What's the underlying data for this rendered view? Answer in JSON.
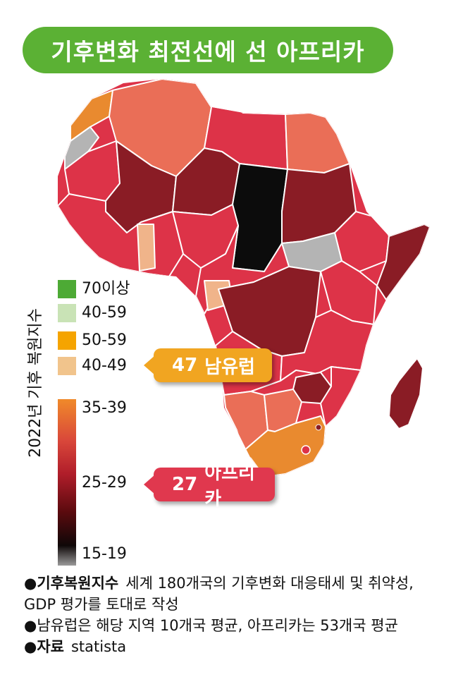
{
  "title": "기후변화 최전선에 선 아프리카",
  "legend": {
    "title": "2022년 기후 복원지수",
    "items": [
      {
        "label": "70이상",
        "color": "#4daa35"
      },
      {
        "label": "40-59",
        "color": "#c9e3b6"
      },
      {
        "label": "50-59",
        "color": "#f5a400"
      },
      {
        "label": "40-49",
        "color": "#f1c48c"
      }
    ],
    "gradient_labels": [
      "35-39",
      "25-29",
      "15-19"
    ]
  },
  "callouts": {
    "europe": {
      "value": "47",
      "label": "남유럽"
    },
    "africa": {
      "value": "27",
      "label": "아프리카"
    }
  },
  "notes": {
    "line1_bold": "●기후복원지수",
    "line1_text": "세계 180개국의 기후변화 대응태세 및 취약성, GDP 평가를 토대로 작성",
    "line2_text": "●남유럽은 해당 지역 10개국 평균, 아프리카는 53개국 평균",
    "source_bold": "●자료",
    "source_text": "statista"
  },
  "colors": {
    "border": "#ffffff",
    "orange": "#e98a2f",
    "salmon": "#ea6e57",
    "red": "#dd3348",
    "dark_red": "#8a1c25",
    "black": "#0c0c0c",
    "gray": "#b4b4b4",
    "light_orange": "#f0b48a"
  }
}
